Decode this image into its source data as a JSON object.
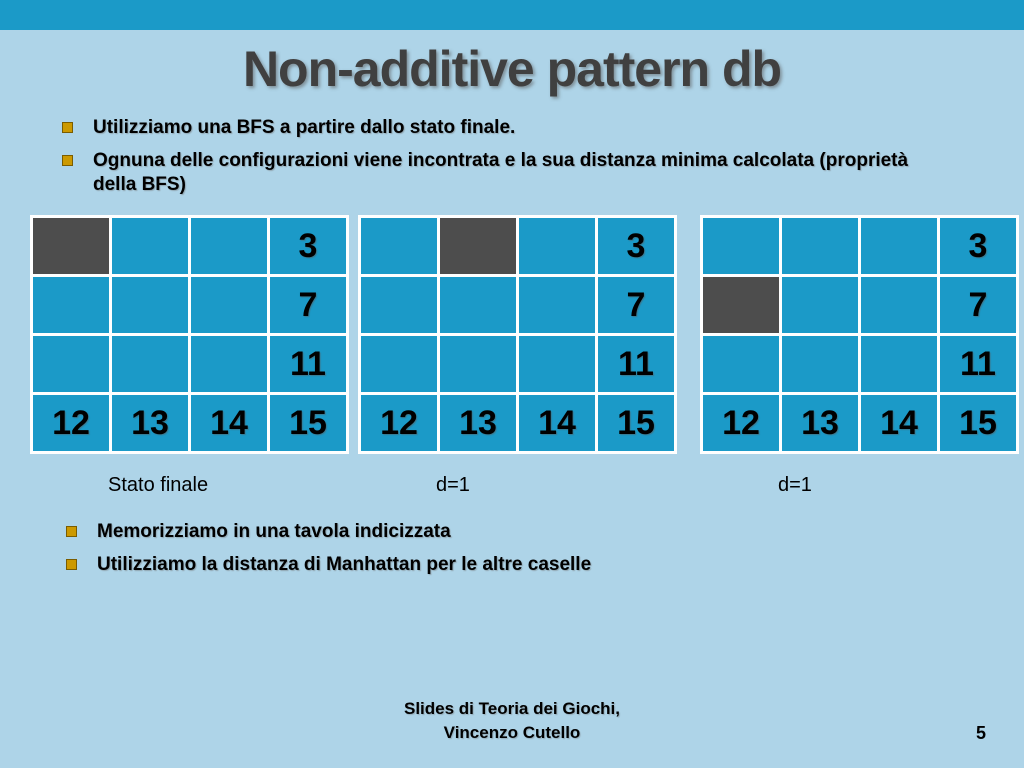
{
  "slide": {
    "title": "Non-additive pattern db",
    "bullets_top": [
      "Utilizziamo una BFS a partire dallo stato finale.",
      "Ognuna delle configurazioni viene incontrata e la sua distanza minima calcolata (proprietà della BFS)"
    ],
    "bullets_bottom": [
      "Memorizziamo in una tavola indicizzata",
      "Utilizziamo la distanza di Manhattan per le altre caselle"
    ],
    "footer_line1": "Slides di Teoria dei Giochi,",
    "footer_line2": "Vincenzo Cutello",
    "page_number": "5"
  },
  "grids": [
    {
      "label": "Stato finale",
      "cells": [
        [
          "",
          "",
          "",
          "3"
        ],
        [
          "",
          "",
          "",
          "7"
        ],
        [
          "",
          "",
          "",
          "11"
        ],
        [
          "12",
          "13",
          "14",
          "15"
        ]
      ],
      "dark_cells": [
        [
          0,
          0
        ]
      ]
    },
    {
      "label": "d=1",
      "cells": [
        [
          "",
          "",
          "",
          "3"
        ],
        [
          "",
          "",
          "",
          "7"
        ],
        [
          "",
          "",
          "",
          "11"
        ],
        [
          "12",
          "13",
          "14",
          "15"
        ]
      ],
      "dark_cells": [
        [
          0,
          1
        ]
      ]
    },
    {
      "label": "d=1",
      "cells": [
        [
          "",
          "",
          "",
          "3"
        ],
        [
          "",
          "",
          "",
          "7"
        ],
        [
          "",
          "",
          "",
          "11"
        ],
        [
          "12",
          "13",
          "14",
          "15"
        ]
      ],
      "dark_cells": [
        [
          1,
          0
        ]
      ]
    }
  ],
  "colors": {
    "background": "#aed4e8",
    "top_strip": "#1b9ac8",
    "cell": "#1b9ac8",
    "cell_dark": "#4d4d4d",
    "grid_line": "#ffffff",
    "bullet": "#cc9900",
    "title_text": "#404040",
    "body_text": "#000000"
  }
}
